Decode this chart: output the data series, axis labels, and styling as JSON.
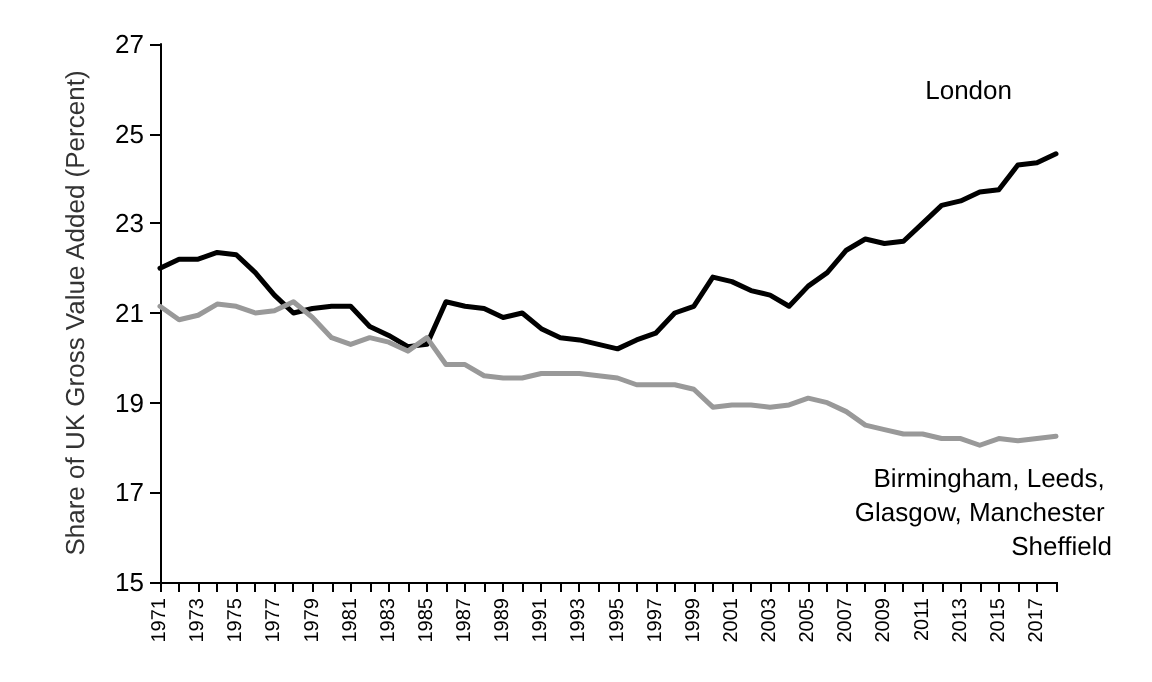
{
  "chart_data": {
    "type": "line",
    "ylabel": "Share of UK Gross Value Added (Percent)",
    "categories": [
      "1971",
      null,
      "1973",
      null,
      "1975",
      null,
      "1977",
      null,
      "1979",
      null,
      "1981",
      null,
      "1983",
      null,
      "1985",
      null,
      "1987",
      null,
      "1989",
      null,
      "1991",
      null,
      "1993",
      null,
      "1995",
      null,
      "1997",
      null,
      "1999",
      null,
      "2001",
      null,
      "2003",
      null,
      "2005",
      null,
      "2007",
      null,
      "2009",
      null,
      "2011",
      null,
      "2013",
      null,
      "2015",
      null,
      "2017",
      null
    ],
    "series": [
      {
        "name": "London",
        "color": "#000000",
        "values": [
          22.0,
          22.2,
          22.2,
          22.35,
          22.3,
          21.9,
          21.4,
          21.0,
          21.1,
          21.15,
          21.15,
          20.7,
          20.5,
          20.25,
          20.3,
          21.25,
          21.15,
          21.1,
          20.9,
          21.0,
          20.65,
          20.45,
          20.4,
          20.3,
          20.2,
          20.4,
          20.55,
          21.0,
          21.15,
          21.8,
          21.7,
          21.5,
          21.4,
          21.15,
          21.6,
          21.9,
          22.4,
          22.65,
          22.55,
          22.6,
          23.0,
          23.4,
          23.5,
          23.7,
          23.75,
          24.3,
          24.35,
          24.55
        ]
      },
      {
        "name": "Birmingham, Leeds, Glasgow, Manchester Sheffield",
        "color": "#999999",
        "values": [
          21.15,
          20.85,
          20.95,
          21.2,
          21.15,
          21.0,
          21.05,
          21.25,
          20.9,
          20.45,
          20.3,
          20.45,
          20.35,
          20.15,
          20.45,
          19.85,
          19.85,
          19.6,
          19.55,
          19.55,
          19.65,
          19.65,
          19.65,
          19.6,
          19.55,
          19.4,
          19.4,
          19.4,
          19.3,
          18.9,
          18.95,
          18.95,
          18.9,
          18.95,
          19.1,
          19.0,
          18.8,
          18.5,
          18.4,
          18.3,
          18.3,
          18.2,
          18.2,
          18.05,
          18.2,
          18.15,
          18.2,
          18.25
        ]
      }
    ],
    "ylim": [
      15,
      27
    ],
    "yticks": [
      15,
      17,
      19,
      21,
      23,
      25,
      27
    ],
    "grid": false,
    "legend": false,
    "marker": "none",
    "line_style": "solid"
  }
}
